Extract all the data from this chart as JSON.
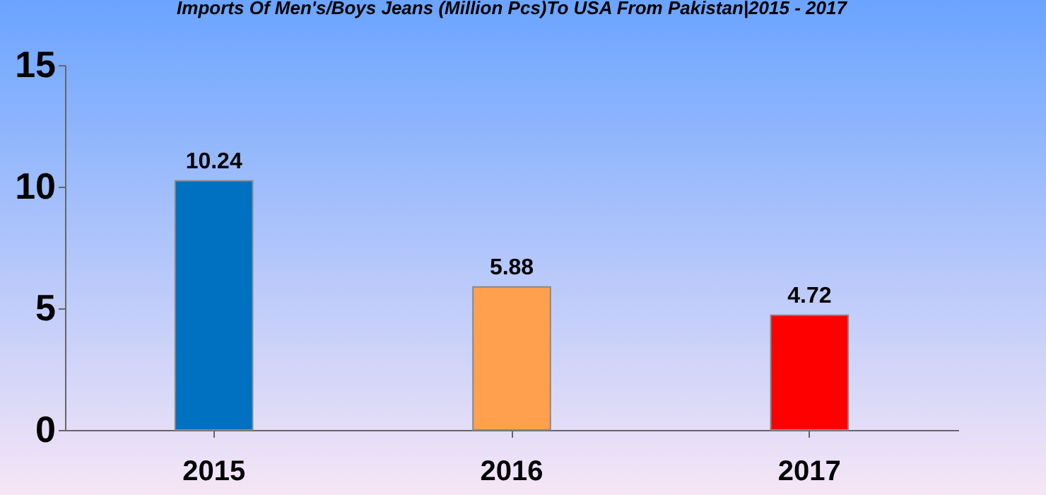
{
  "chart_data": {
    "type": "bar",
    "title": "Imports Of Men's/Boys Jeans (Million Pcs)To USA From Pakistan|2015 - 2017",
    "categories": [
      "2015",
      "2016",
      "2017"
    ],
    "values": [
      10.24,
      5.88,
      4.72
    ],
    "colors": [
      "#0070c0",
      "#ffa04f",
      "#ff0000"
    ],
    "ylim": [
      0,
      15
    ],
    "yticks": [
      0,
      5,
      10,
      15
    ],
    "data_labels": true,
    "grid": false
  }
}
